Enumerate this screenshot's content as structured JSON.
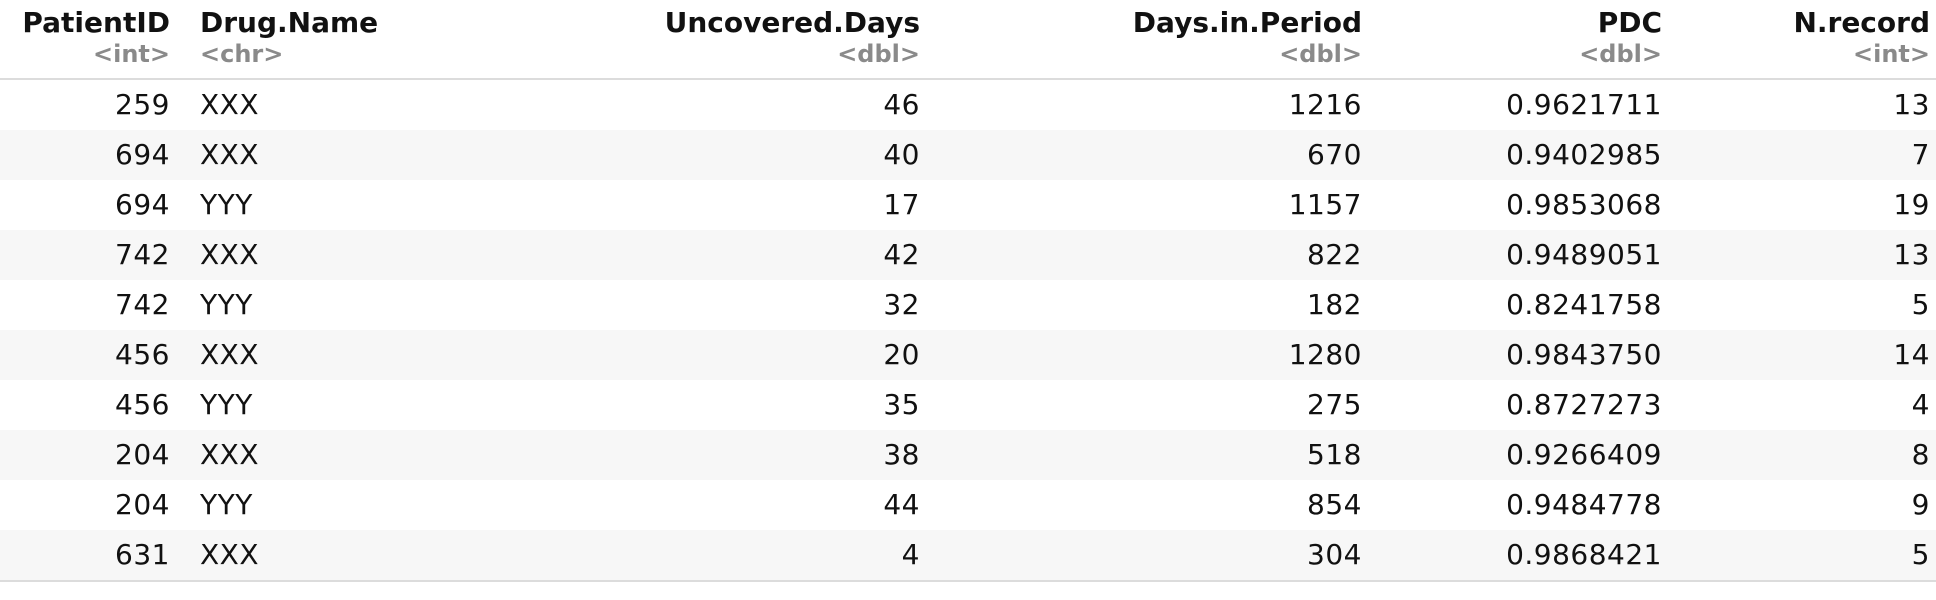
{
  "table": {
    "columns": [
      {
        "name": "PatientID",
        "type": "<int>"
      },
      {
        "name": "Drug.Name",
        "type": "<chr>"
      },
      {
        "name": "Uncovered.Days",
        "type": "<dbl>"
      },
      {
        "name": "Days.in.Period",
        "type": "<dbl>"
      },
      {
        "name": "PDC",
        "type": "<dbl>"
      },
      {
        "name": "N.record",
        "type": "<int>"
      }
    ],
    "rows": [
      [
        "259",
        "XXX",
        "46",
        "1216",
        "0.9621711",
        "13"
      ],
      [
        "694",
        "XXX",
        "40",
        "670",
        "0.9402985",
        "7"
      ],
      [
        "694",
        "YYY",
        "17",
        "1157",
        "0.9853068",
        "19"
      ],
      [
        "742",
        "XXX",
        "42",
        "822",
        "0.9489051",
        "13"
      ],
      [
        "742",
        "YYY",
        "32",
        "182",
        "0.8241758",
        "5"
      ],
      [
        "456",
        "XXX",
        "20",
        "1280",
        "0.9843750",
        "14"
      ],
      [
        "456",
        "YYY",
        "35",
        "275",
        "0.8727273",
        "4"
      ],
      [
        "204",
        "XXX",
        "38",
        "518",
        "0.9266409",
        "8"
      ],
      [
        "204",
        "YYY",
        "44",
        "854",
        "0.9484778",
        "9"
      ],
      [
        "631",
        "XXX",
        "4",
        "304",
        "0.9868421",
        "5"
      ]
    ]
  }
}
